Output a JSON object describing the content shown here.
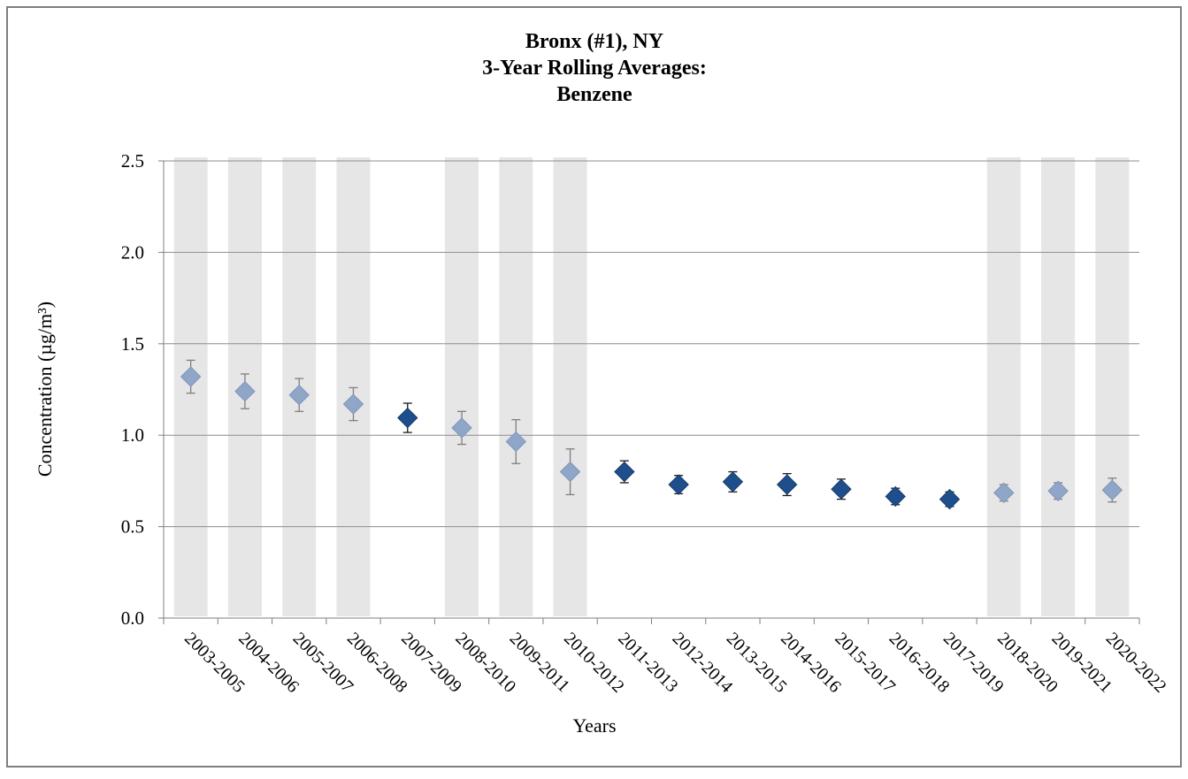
{
  "chart_data": {
    "type": "scatter",
    "title": [
      "Bronx (#1), NY",
      "3-Year Rolling Averages:",
      "Benzene"
    ],
    "x_label": "Years",
    "y_label": "Concentration (µg/m³)",
    "categories": [
      "2003-2005",
      "2004-2006",
      "2005-2007",
      "2006-2008",
      "2007-2009",
      "2008-2010",
      "2009-2011",
      "2010-2012",
      "2011-2013",
      "2012-2014",
      "2013-2015",
      "2014-2016",
      "2015-2017",
      "2016-2018",
      "2017-2019",
      "2018-2020",
      "2019-2021",
      "2020-2022"
    ],
    "values": [
      1.32,
      1.24,
      1.22,
      1.17,
      1.095,
      1.04,
      0.965,
      0.8,
      0.8,
      0.73,
      0.745,
      0.73,
      0.705,
      0.665,
      0.65,
      0.685,
      0.695,
      0.7
    ],
    "errors": [
      0.09,
      0.095,
      0.09,
      0.09,
      0.08,
      0.09,
      0.12,
      0.125,
      0.06,
      0.05,
      0.055,
      0.06,
      0.055,
      0.045,
      0.04,
      0.045,
      0.045,
      0.065
    ],
    "colors": [
      "#8fa6c9",
      "#8fa6c9",
      "#8fa6c9",
      "#8fa6c9",
      "#1f4e8c",
      "#8fa6c9",
      "#8fa6c9",
      "#8fa6c9",
      "#1f4e8c",
      "#1f4e8c",
      "#1f4e8c",
      "#1f4e8c",
      "#1f4e8c",
      "#1f4e8c",
      "#1f4e8c",
      "#8fa6c9",
      "#8fa6c9",
      "#8fa6c9"
    ],
    "shaded": [
      true,
      true,
      true,
      true,
      false,
      true,
      true,
      true,
      false,
      false,
      false,
      false,
      false,
      false,
      false,
      true,
      true,
      true
    ],
    "shade_color": "#e6e6e6",
    "ylim": [
      0,
      2.5
    ],
    "yticks": [
      {
        "value": 0,
        "label": "0.0"
      },
      0.5,
      {
        "value": 1,
        "label": "1.0"
      },
      1.5,
      {
        "value": 2,
        "label": "2.0"
      },
      2.5
    ],
    "grid": true
  }
}
